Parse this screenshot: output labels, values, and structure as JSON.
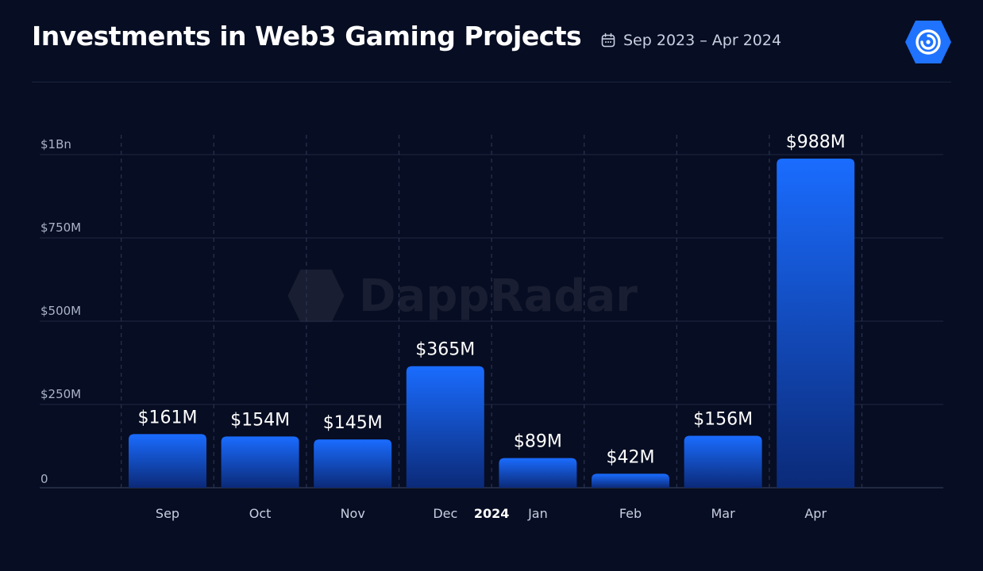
{
  "header": {
    "title": "Investments in Web3 Gaming Projects",
    "date_range": "Sep 2023 – Apr 2024"
  },
  "icons": {
    "calendar": "calendar-icon",
    "logo": "dappradar-logo-icon"
  },
  "watermark": {
    "text": "DappRadar"
  },
  "colors": {
    "background": "#070d22",
    "bar_top": "#1a6cff",
    "bar_bottom": "#0b2a78",
    "grid": "#2a3350",
    "accent": "#1f73ff"
  },
  "chart_data": {
    "type": "bar",
    "title": "Investments in Web3 Gaming Projects",
    "categories": [
      "Sep",
      "Oct",
      "Nov",
      "Dec",
      "Jan",
      "Feb",
      "Mar",
      "Apr"
    ],
    "values": [
      161,
      154,
      145,
      365,
      89,
      42,
      156,
      988
    ],
    "value_labels": [
      "$161M",
      "$154M",
      "$145M",
      "$365M",
      "$89M",
      "$42M",
      "$156M",
      "$988M"
    ],
    "year_marker": {
      "label": "2024",
      "before_category": "Jan"
    },
    "ylim": [
      0,
      1000
    ],
    "yticks": [
      0,
      250,
      500,
      750,
      1000
    ],
    "ytick_labels": [
      "0",
      "$250M",
      "$500M",
      "$750M",
      "$1Bn"
    ],
    "xlabel": "",
    "ylabel": "",
    "grid": true
  }
}
